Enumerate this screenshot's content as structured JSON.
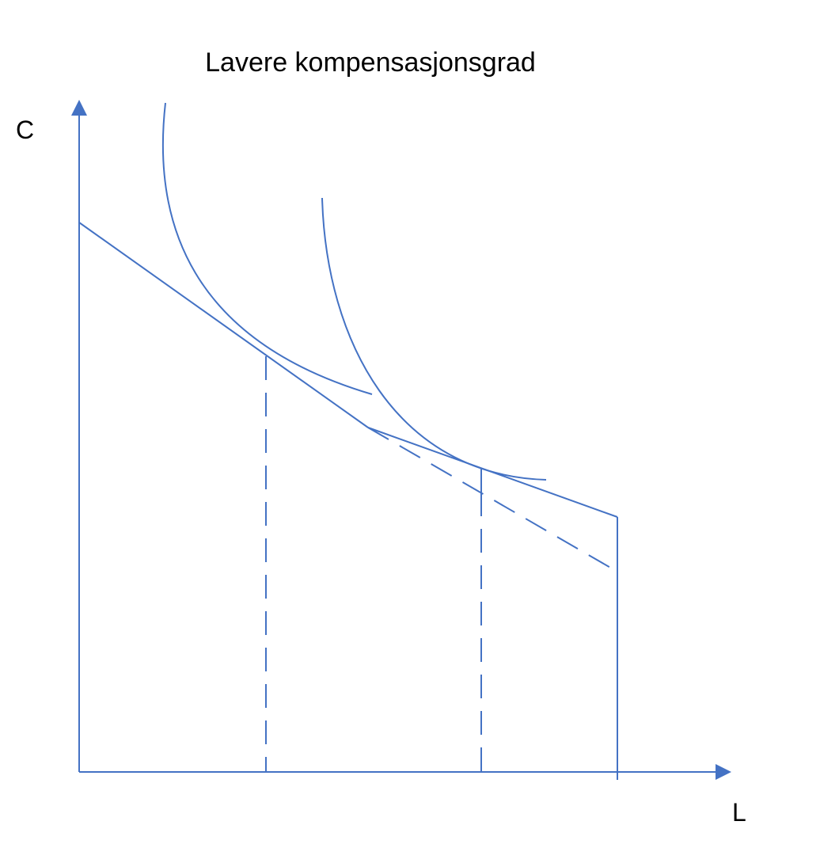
{
  "title": "Lavere kompensasjonsgrad",
  "axes": {
    "y_label": "C",
    "x_label": "L"
  },
  "colors": {
    "line": "#4472C4",
    "text": "#000000",
    "background": "#FFFFFF"
  },
  "elements": {
    "budget_line": "solid",
    "budget_line_extension": "dashed",
    "kinked_budget_segment": "solid",
    "endowment_vertical": "solid",
    "indifference_curves": 2,
    "tangency_drop_lines": "dashed"
  }
}
